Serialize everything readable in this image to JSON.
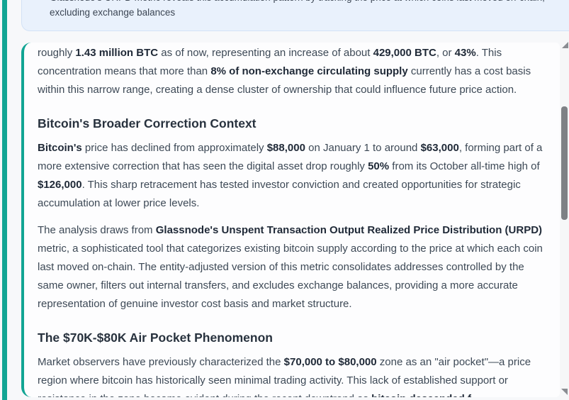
{
  "theme": {
    "accent_teal": "#12a594",
    "page_bg": "#f7f8fa",
    "callout_bg": "#e9f1fc",
    "callout_border": "#d3e2f6",
    "card_bg": "#fdfdfe",
    "body_text": "#3d4956",
    "bold_text": "#1f2937",
    "heading_text": "#28323e",
    "scrollbar_thumb": "#7e8185"
  },
  "callout": {
    "items": [
      "Glassnode's URPD metric reveals this accumulation pattern by tracking the price at which coins last moved on-chain, excluding exchange balances"
    ]
  },
  "article": {
    "blocks": [
      {
        "type": "paragraph",
        "segments": [
          {
            "t": "roughly "
          },
          {
            "t": "1.43 million BTC",
            "b": true
          },
          {
            "t": " as of now, representing an increase of about "
          },
          {
            "t": "429,000 BTC",
            "b": true
          },
          {
            "t": ", or "
          },
          {
            "t": "43%",
            "b": true
          },
          {
            "t": ". This concentration means that more than "
          },
          {
            "t": "8% of non-exchange circulating supply",
            "b": true
          },
          {
            "t": " currently has a cost basis within this narrow range, creating a dense cluster of ownership that could influence future price action."
          }
        ]
      },
      {
        "type": "heading",
        "text": "Bitcoin's Broader Correction Context"
      },
      {
        "type": "paragraph",
        "segments": [
          {
            "t": "Bitcoin's",
            "b": true
          },
          {
            "t": " price has declined from approximately "
          },
          {
            "t": "$88,000",
            "b": true
          },
          {
            "t": " on January 1 to around "
          },
          {
            "t": "$63,000",
            "b": true
          },
          {
            "t": ", forming part of a more extensive correction that has seen the digital asset drop roughly "
          },
          {
            "t": "50%",
            "b": true
          },
          {
            "t": " from its October all-time high of "
          },
          {
            "t": "$126,000",
            "b": true
          },
          {
            "t": ". This sharp retracement has tested investor conviction and created opportunities for strategic accumulation at lower price levels."
          }
        ]
      },
      {
        "type": "paragraph",
        "segments": [
          {
            "t": "The analysis draws from "
          },
          {
            "t": "Glassnode's Unspent Transaction Output Realized Price Distribution (URPD)",
            "b": true
          },
          {
            "t": " metric, a sophisticated tool that categorizes existing bitcoin supply according to the price at which each coin last moved on-chain. The entity-adjusted version of this metric consolidates addresses controlled by the same owner, filters out internal transfers, and excludes exchange balances, providing a more accurate representation of genuine investor cost basis and market structure."
          }
        ]
      },
      {
        "type": "heading",
        "text": "The $70K-$80K Air Pocket Phenomenon"
      },
      {
        "type": "paragraph",
        "segments": [
          {
            "t": "Market observers have previously characterized the "
          },
          {
            "t": "$70,000 to $80,000",
            "b": true
          },
          {
            "t": " zone as an \"air pocket\"—a price region where bitcoin has historically seen minimal trading activity. This lack of established support or resistance in the zone became evident during the recent downtrend as "
          },
          {
            "t": "bitcoin descended f",
            "b": true
          }
        ]
      }
    ]
  }
}
